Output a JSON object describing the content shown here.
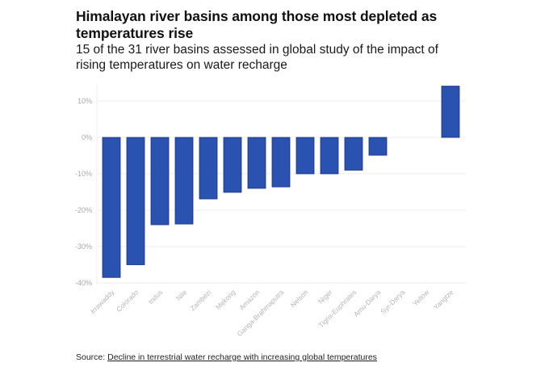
{
  "chart_data": {
    "type": "bar",
    "title": "Himalayan river basins among those most depleted as temperatures rise",
    "subtitle": "15 of the 31 river basins assessed in global study of the impact of rising temperatures on water recharge",
    "xlabel": "",
    "ylabel": "",
    "ylim": [
      -40,
      10
    ],
    "yticks": [
      10,
      0,
      -10,
      -20,
      -30,
      -40
    ],
    "ytick_labels": [
      "10%",
      "0%",
      "-10%",
      "-20%",
      "-30%",
      "-40%"
    ],
    "grid": true,
    "categories": [
      "Irrawaddy",
      "Colorado",
      "Indus",
      "Nile",
      "Zambezi",
      "Mekong",
      "Amazon",
      "Ganga-Brahmaputra",
      "Nelson",
      "Niger",
      "Tigris-Euphrates",
      "Amu-Darya",
      "Syr-Darya",
      "Yellow",
      "Yangtze"
    ],
    "values": [
      -38.5,
      -35,
      -24,
      -23.8,
      -16.9,
      -15.1,
      -14,
      -13.6,
      -10,
      -10,
      -9,
      -4.9,
      0,
      0,
      14.1
    ],
    "colors": {
      "bar": "#2a52b0",
      "bar_border": "#1a2f7a",
      "grid": "#eeeeee"
    }
  },
  "source": {
    "prefix": "Source: ",
    "link_text": "Decline in terrestrial water recharge with increasing global temperatures"
  }
}
